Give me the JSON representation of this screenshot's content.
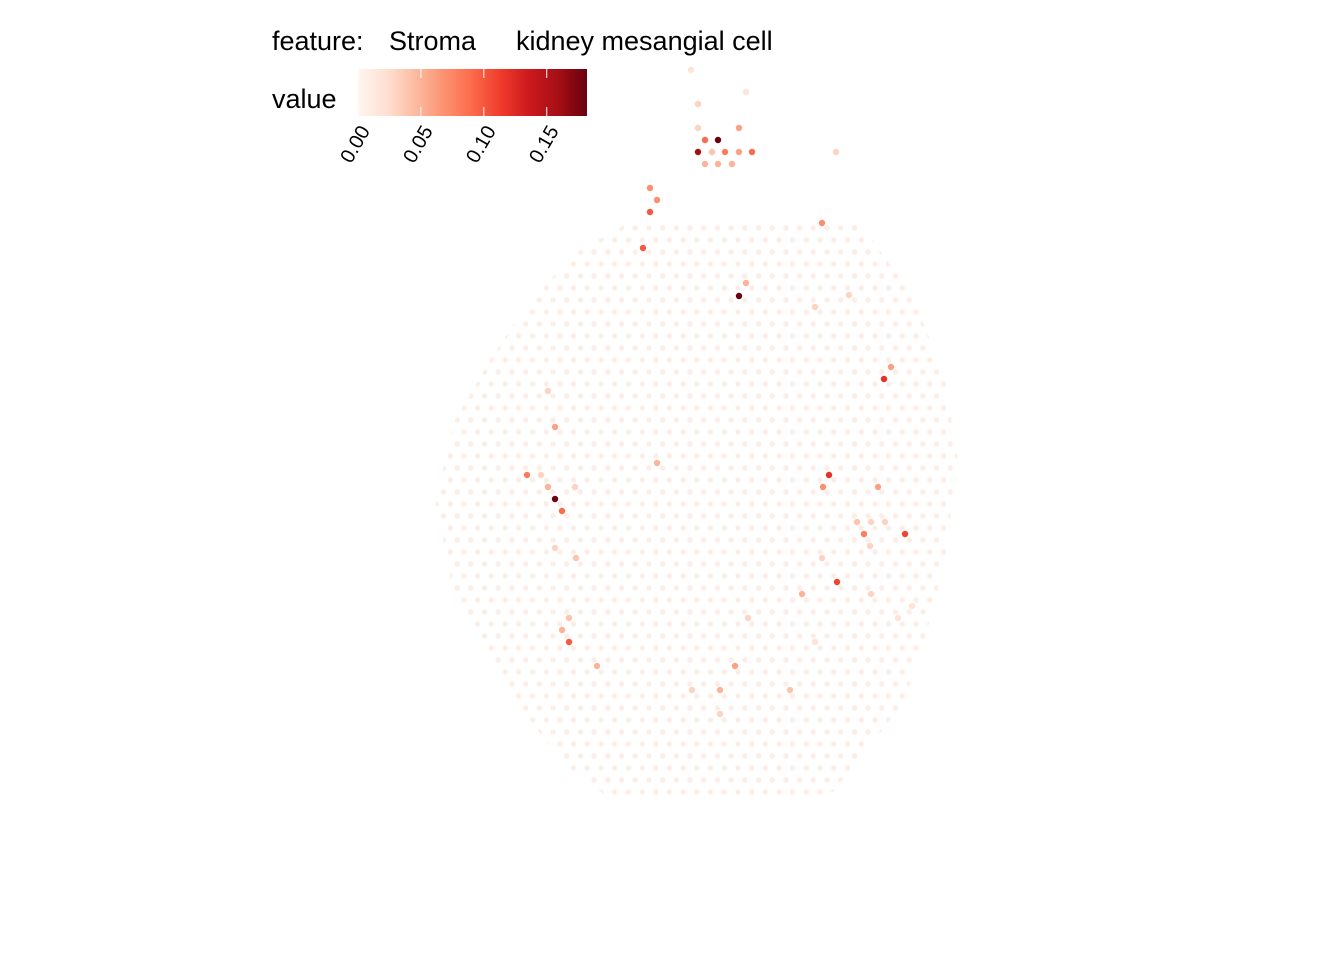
{
  "chart_data": {
    "type": "scatter",
    "legend_label": "feature:",
    "feature": "Stroma",
    "cell_type": "kidney mesangial cell",
    "colorbar_title": "value",
    "colors": [
      "#fff5f0",
      "#fee0d2",
      "#fcbba1",
      "#fc9272",
      "#fb6a4a",
      "#ef3b2c",
      "#cb181d",
      "#a50f15",
      "#67000d"
    ],
    "clim": [
      0,
      0.182
    ],
    "cticks": [
      {
        "value": 0,
        "label": "0.00"
      },
      {
        "value": 0.05,
        "label": "0.05"
      },
      {
        "value": 0.1,
        "label": "0.10"
      },
      {
        "value": 0.15,
        "label": "0.15"
      }
    ],
    "xlim": [
      0,
      1344
    ],
    "ylim": [
      960,
      0
    ],
    "x": [
      720,
      692,
      720,
      790,
      597,
      735,
      569,
      562,
      569,
      815,
      748,
      898,
      802,
      837,
      871,
      912,
      576,
      555,
      822,
      870,
      864,
      905,
      857,
      871,
      885,
      562,
      555,
      548,
      575,
      527,
      541,
      823,
      878,
      829,
      657,
      555,
      548,
      884,
      891,
      739,
      746,
      849,
      815,
      643,
      822,
      650,
      657,
      650,
      705,
      718,
      732,
      698,
      712,
      725,
      739,
      752,
      705,
      718,
      739,
      836,
      698,
      698,
      746,
      691
    ],
    "y": [
      246,
      270,
      270,
      270,
      294,
      294,
      318,
      330,
      342,
      318,
      342,
      342,
      366,
      378,
      366,
      354,
      402,
      412,
      402,
      414,
      426,
      426,
      438,
      438,
      438,
      449,
      461,
      473,
      473,
      485,
      485,
      473,
      473,
      485,
      497,
      533,
      569,
      581,
      593,
      664,
      677,
      665,
      653,
      712,
      737,
      748,
      760,
      772,
      796,
      796,
      796,
      808,
      808,
      808,
      808,
      808,
      820,
      820,
      832,
      808,
      832,
      856,
      868,
      890
    ],
    "values": [
      0.03,
      0.03,
      0.05,
      0.04,
      0.05,
      0.06,
      0.1,
      0.05,
      0.04,
      0.02,
      0.03,
      0.02,
      0.05,
      0.11,
      0.03,
      0.02,
      0.04,
      0.03,
      0.03,
      0.03,
      0.08,
      0.11,
      0.04,
      0.03,
      0.03,
      0.09,
      0.18,
      0.05,
      0.03,
      0.08,
      0.03,
      0.07,
      0.06,
      0.12,
      0.05,
      0.06,
      0.03,
      0.12,
      0.06,
      0.18,
      0.05,
      0.03,
      0.03,
      0.1,
      0.07,
      0.1,
      0.07,
      0.07,
      0.05,
      0.05,
      0.05,
      0.16,
      0.04,
      0.08,
      0.06,
      0.09,
      0.09,
      0.18,
      0.06,
      0.03,
      0.03,
      0.03,
      0.02,
      0.02
    ]
  }
}
